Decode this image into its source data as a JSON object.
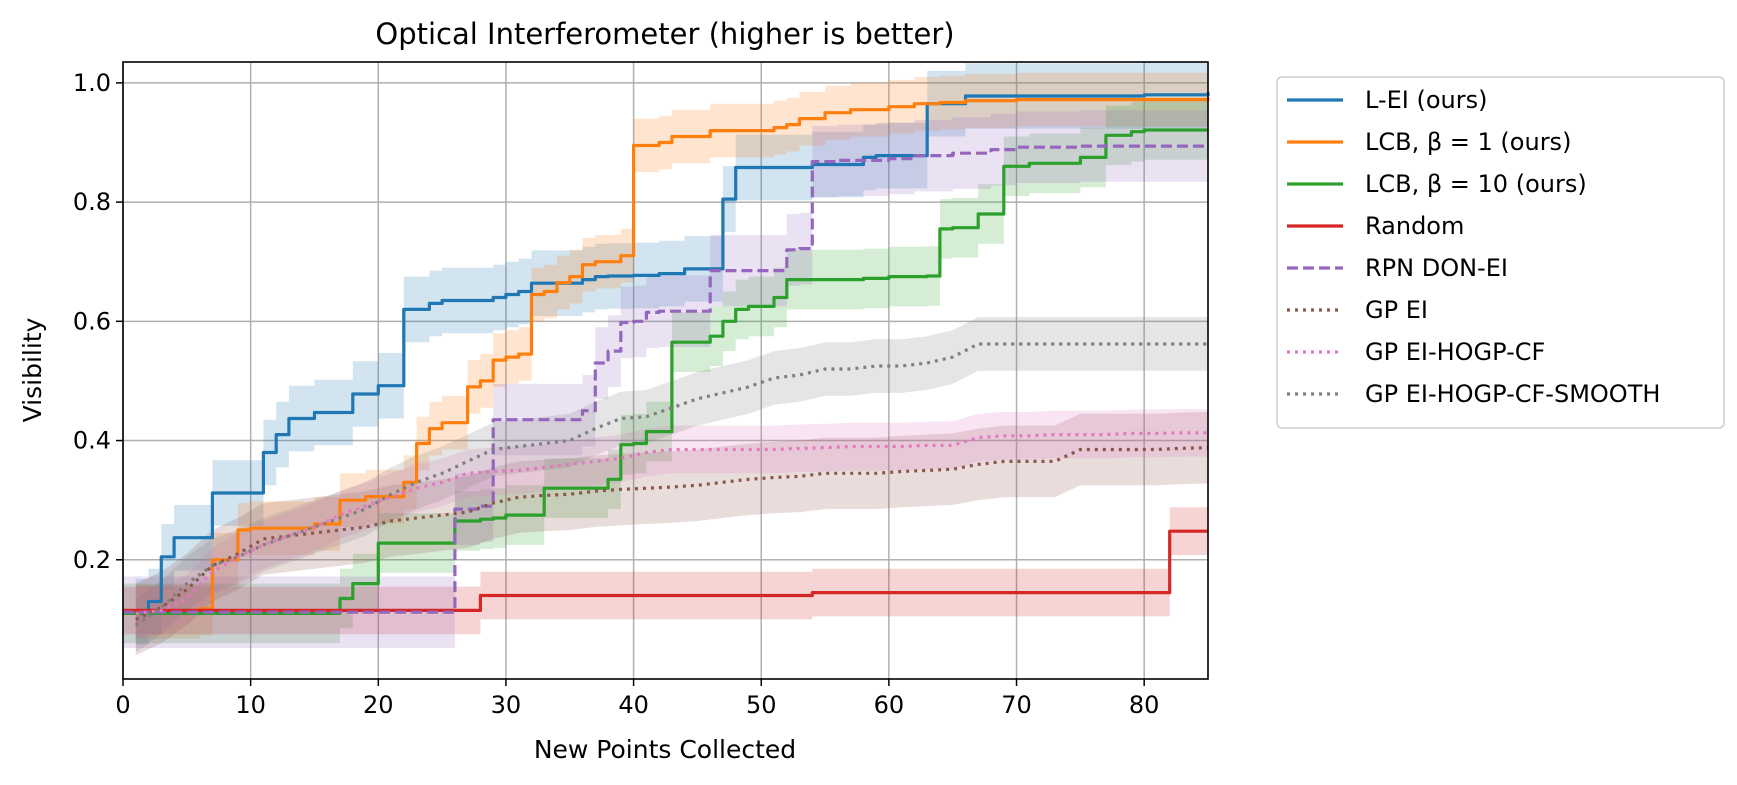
{
  "chart_data": {
    "type": "line",
    "title": "Optical Interferometer (higher is better)",
    "xlabel": "New Points Collected",
    "ylabel": "Visibility",
    "xlim": [
      0,
      85
    ],
    "ylim": [
      0.0,
      1.035
    ],
    "xticks": [
      0,
      10,
      20,
      30,
      40,
      50,
      60,
      70,
      80
    ],
    "yticks": [
      0.2,
      0.4,
      0.6,
      0.8,
      1.0
    ],
    "xtick_labels": [
      "0",
      "10",
      "20",
      "30",
      "40",
      "50",
      "60",
      "70",
      "80"
    ],
    "ytick_labels": [
      "0.2",
      "0.4",
      "0.6",
      "0.8",
      "1.0"
    ],
    "grid": true,
    "legend_position": "outside upper right",
    "series": [
      {
        "name": "L-EI (ours)",
        "color": "#1f77b4",
        "dash": "solid",
        "x": [
          1,
          2,
          3,
          4,
          6,
          7,
          10,
          11,
          12,
          13,
          14,
          15,
          17,
          18,
          19,
          20,
          21,
          22,
          23,
          24,
          25,
          28,
          29,
          30,
          31,
          32,
          33,
          35,
          36,
          37,
          38,
          39,
          40,
          41,
          42,
          43,
          44,
          45,
          46,
          47,
          48,
          53,
          54,
          55,
          58,
          59,
          62,
          63,
          64,
          66,
          80,
          85
        ],
        "y": [
          0.113,
          0.13,
          0.205,
          0.237,
          0.237,
          0.312,
          0.312,
          0.38,
          0.41,
          0.437,
          0.437,
          0.447,
          0.447,
          0.478,
          0.478,
          0.492,
          0.492,
          0.62,
          0.62,
          0.63,
          0.635,
          0.635,
          0.64,
          0.645,
          0.65,
          0.664,
          0.664,
          0.664,
          0.67,
          0.675,
          0.676,
          0.676,
          0.677,
          0.677,
          0.68,
          0.68,
          0.688,
          0.688,
          0.688,
          0.805,
          0.858,
          0.858,
          0.863,
          0.863,
          0.875,
          0.878,
          0.878,
          0.965,
          0.965,
          0.978,
          0.98,
          0.984
        ],
        "band": 0.055
      },
      {
        "name": "LCB, β = 1 (ours)",
        "color": "#ff7f0e",
        "dash": "solid",
        "x": [
          1,
          3,
          6,
          7,
          8,
          9,
          10,
          14,
          15,
          16,
          17,
          18,
          19,
          21,
          22,
          23,
          24,
          25,
          26,
          27,
          28,
          29,
          30,
          31,
          32,
          33,
          34,
          35,
          36,
          37,
          38,
          39,
          40,
          41,
          42,
          43,
          45,
          46,
          47,
          48,
          51,
          52,
          53,
          55,
          57,
          60,
          62,
          64,
          66,
          70,
          85
        ],
        "y": [
          0.113,
          0.113,
          0.118,
          0.2,
          0.2,
          0.25,
          0.253,
          0.253,
          0.26,
          0.26,
          0.3,
          0.3,
          0.306,
          0.306,
          0.33,
          0.395,
          0.42,
          0.43,
          0.43,
          0.49,
          0.5,
          0.535,
          0.54,
          0.545,
          0.645,
          0.65,
          0.665,
          0.675,
          0.695,
          0.7,
          0.7,
          0.71,
          0.895,
          0.895,
          0.9,
          0.91,
          0.91,
          0.92,
          0.92,
          0.92,
          0.925,
          0.93,
          0.94,
          0.95,
          0.955,
          0.96,
          0.965,
          0.967,
          0.97,
          0.972,
          0.975
        ],
        "band": 0.045
      },
      {
        "name": "LCB, β = 10 (ours)",
        "color": "#2ca02c",
        "dash": "solid",
        "x": [
          0,
          16,
          17,
          18,
          19,
          20,
          25,
          26,
          27,
          28,
          29,
          30,
          32,
          33,
          37,
          38,
          39,
          40,
          41,
          42,
          43,
          44,
          46,
          47,
          48,
          49,
          50,
          51,
          52,
          53,
          55,
          58,
          60,
          62,
          63,
          64,
          65,
          66,
          67,
          68,
          69,
          71,
          74,
          75,
          77,
          78,
          79,
          80,
          85
        ],
        "y": [
          0.11,
          0.11,
          0.135,
          0.16,
          0.16,
          0.228,
          0.228,
          0.265,
          0.265,
          0.268,
          0.27,
          0.275,
          0.275,
          0.32,
          0.32,
          0.335,
          0.393,
          0.395,
          0.415,
          0.415,
          0.565,
          0.565,
          0.575,
          0.6,
          0.62,
          0.625,
          0.625,
          0.64,
          0.67,
          0.67,
          0.67,
          0.672,
          0.675,
          0.675,
          0.676,
          0.755,
          0.757,
          0.757,
          0.78,
          0.78,
          0.86,
          0.865,
          0.865,
          0.875,
          0.912,
          0.912,
          0.918,
          0.921,
          0.921
        ],
        "band": 0.05
      },
      {
        "name": "Random",
        "color": "#d62728",
        "dash": "solid",
        "x": [
          0,
          27,
          28,
          53,
          54,
          81,
          82,
          85
        ],
        "y": [
          0.115,
          0.115,
          0.14,
          0.14,
          0.145,
          0.145,
          0.248,
          0.248
        ],
        "band": 0.04
      },
      {
        "name": "RPN DON-EI",
        "color": "#9467bd",
        "dash": "dashed",
        "x": [
          0,
          25,
          26,
          27,
          28,
          29,
          35,
          36,
          37,
          38,
          39,
          40,
          41,
          42,
          45,
          46,
          47,
          50,
          52,
          53,
          54,
          56,
          60,
          62,
          65,
          68,
          70,
          75,
          85
        ],
        "y": [
          0.112,
          0.112,
          0.285,
          0.285,
          0.29,
          0.435,
          0.435,
          0.45,
          0.53,
          0.55,
          0.598,
          0.6,
          0.615,
          0.617,
          0.617,
          0.685,
          0.685,
          0.685,
          0.72,
          0.722,
          0.868,
          0.87,
          0.873,
          0.878,
          0.882,
          0.888,
          0.892,
          0.894,
          0.894
        ],
        "band": 0.06
      },
      {
        "name": "GP EI",
        "color": "#8c564b",
        "dash": "dotted",
        "x": [
          1,
          3,
          5,
          7,
          9,
          11,
          13,
          15,
          17,
          19,
          21,
          23,
          25,
          27,
          29,
          31,
          33,
          35,
          37,
          39,
          41,
          43,
          45,
          47,
          49,
          51,
          53,
          55,
          57,
          59,
          61,
          63,
          65,
          67,
          69,
          71,
          73,
          75,
          77,
          79,
          81,
          83,
          85
        ],
        "y": [
          0.1,
          0.12,
          0.15,
          0.19,
          0.21,
          0.235,
          0.24,
          0.245,
          0.25,
          0.255,
          0.265,
          0.27,
          0.275,
          0.28,
          0.295,
          0.305,
          0.308,
          0.31,
          0.315,
          0.318,
          0.32,
          0.322,
          0.325,
          0.33,
          0.335,
          0.338,
          0.34,
          0.345,
          0.345,
          0.345,
          0.348,
          0.35,
          0.352,
          0.36,
          0.365,
          0.365,
          0.365,
          0.385,
          0.385,
          0.385,
          0.385,
          0.387,
          0.388
        ],
        "band": 0.06
      },
      {
        "name": "GP EI-HOGP-CF",
        "color": "#e377c2",
        "dash": "dotted",
        "x": [
          1,
          3,
          5,
          7,
          9,
          11,
          13,
          15,
          17,
          19,
          21,
          23,
          25,
          27,
          29,
          31,
          33,
          35,
          37,
          39,
          41,
          43,
          45,
          47,
          49,
          51,
          53,
          55,
          57,
          59,
          61,
          63,
          65,
          67,
          69,
          71,
          73,
          75,
          77,
          79,
          81,
          83,
          85
        ],
        "y": [
          0.11,
          0.115,
          0.135,
          0.18,
          0.205,
          0.225,
          0.24,
          0.255,
          0.275,
          0.29,
          0.305,
          0.32,
          0.33,
          0.345,
          0.348,
          0.35,
          0.355,
          0.36,
          0.365,
          0.37,
          0.38,
          0.385,
          0.385,
          0.385,
          0.385,
          0.385,
          0.387,
          0.388,
          0.39,
          0.39,
          0.39,
          0.392,
          0.392,
          0.405,
          0.408,
          0.408,
          0.41,
          0.41,
          0.41,
          0.412,
          0.412,
          0.413,
          0.413
        ],
        "band": 0.04
      },
      {
        "name": "GP EI-HOGP-CF-SMOOTH",
        "color": "#7f7f7f",
        "dash": "dotted",
        "x": [
          1,
          3,
          5,
          7,
          9,
          11,
          13,
          15,
          17,
          19,
          21,
          23,
          25,
          27,
          29,
          31,
          33,
          35,
          37,
          39,
          41,
          43,
          45,
          47,
          49,
          51,
          53,
          55,
          57,
          59,
          61,
          63,
          65,
          67,
          69,
          71,
          73,
          75,
          77,
          79,
          81,
          83,
          85
        ],
        "y": [
          0.09,
          0.12,
          0.16,
          0.19,
          0.205,
          0.225,
          0.24,
          0.255,
          0.27,
          0.285,
          0.31,
          0.33,
          0.345,
          0.365,
          0.385,
          0.39,
          0.395,
          0.4,
          0.42,
          0.437,
          0.44,
          0.455,
          0.47,
          0.48,
          0.49,
          0.505,
          0.51,
          0.52,
          0.52,
          0.525,
          0.525,
          0.53,
          0.54,
          0.562,
          0.562,
          0.562,
          0.562,
          0.562,
          0.562,
          0.562,
          0.562,
          0.562,
          0.562
        ],
        "band": 0.045
      }
    ]
  }
}
